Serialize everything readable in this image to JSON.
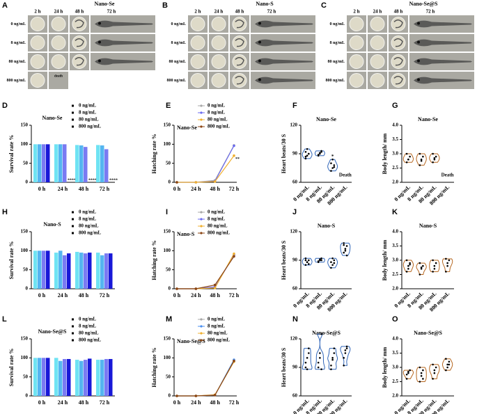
{
  "image_panels": [
    {
      "panel": "A",
      "title": "Nano-Se",
      "columns": [
        "2 h",
        "24 h",
        "48 h",
        "72 h"
      ],
      "rows": [
        "0 ng/mL",
        "8 ng/mL",
        "80 ng/mL",
        "800 ng/mL"
      ],
      "death_label": "death"
    },
    {
      "panel": "B",
      "title": "Nano-S",
      "columns": [
        "2 h",
        "24 h",
        "48 h",
        "72 h"
      ],
      "rows": [
        "0 ng/mL",
        "8 ng/mL",
        "80 ng/mL",
        "800 ng/mL"
      ]
    },
    {
      "panel": "C",
      "title": "Nano-Se@S",
      "columns": [
        "2 h",
        "24 h",
        "48 h",
        "72 h"
      ],
      "rows": [
        "0 ng/mL",
        "8 ng/mL",
        "80 ng/mL",
        "800 ng/mL"
      ]
    }
  ],
  "chart_data": [
    {
      "type": "bar",
      "panel": "D",
      "title": "Nano-Se",
      "ylabel": "Survival rate %",
      "categories": [
        "0 h",
        "24 h",
        "48 h",
        "72 h"
      ],
      "ylim": [
        0,
        150
      ],
      "yticks": [
        0,
        50,
        100,
        150
      ],
      "legend": "upper right",
      "series": [
        {
          "name": "0 ng/mL",
          "color": "#6fe3f3",
          "values": [
            100,
            100,
            98,
            98
          ]
        },
        {
          "name": "8 ng/mL",
          "color": "#55b5f0",
          "values": [
            100,
            100,
            97,
            97
          ]
        },
        {
          "name": "80 ng/mL",
          "color": "#7a7af2",
          "values": [
            100,
            100,
            93,
            87
          ]
        },
        {
          "name": "800 ng/mL",
          "color": "#1818d8",
          "values": [
            100,
            0,
            0,
            0
          ],
          "significance": [
            null,
            "****",
            "****",
            "****"
          ]
        }
      ]
    },
    {
      "type": "line",
      "panel": "E",
      "title": "Nano-Se",
      "ylabel": "Hatching rate %",
      "categories": [
        "0 h",
        "24 h",
        "48 h",
        "72 h"
      ],
      "ylim": [
        0,
        150
      ],
      "yticks": [
        0,
        50,
        100,
        150
      ],
      "legend": "upper right",
      "series": [
        {
          "name": "0 ng/mL",
          "color": "#a8a8a8",
          "values": [
            0,
            0,
            5,
            97
          ]
        },
        {
          "name": "8 ng/mL",
          "color": "#6b6bf0",
          "values": [
            0,
            0,
            3,
            96
          ]
        },
        {
          "name": "80 ng/mL",
          "color": "#f0b030",
          "values": [
            0,
            0,
            2,
            70
          ],
          "significance": [
            null,
            null,
            null,
            "**"
          ]
        },
        {
          "name": "800 ng/mL",
          "color": "#8b4513",
          "values": [
            0,
            null,
            null,
            null
          ]
        }
      ]
    },
    {
      "type": "violin",
      "panel": "F",
      "title": "Nano-Se",
      "ylabel": "Heart beats/30 S",
      "color": "#2e64b8",
      "categories": [
        "0 ng/mL",
        "8 ng/mL",
        "80 ng/mL",
        "800 ng/mL"
      ],
      "ylim": [
        60,
        120
      ],
      "yticks": [
        60,
        90,
        120
      ],
      "values": [
        [
          85,
          88,
          90,
          92,
          95,
          90,
          87
        ],
        [
          88,
          90,
          92,
          89,
          91,
          93
        ],
        [
          72,
          75,
          78,
          80,
          84,
          76
        ],
        null
      ],
      "annotations": [
        null,
        null,
        "*",
        "Death"
      ]
    },
    {
      "type": "violin",
      "panel": "G",
      "title": "Nano-Se",
      "ylabel": "Body length/ mm",
      "color": "#b5651d",
      "categories": [
        "0 ng/mL",
        "8 ng/mL",
        "80 ng/mL",
        "800 ng/mL"
      ],
      "ylim": [
        2,
        4
      ],
      "yticks": [
        {
          "value": 2,
          "label": "2.0"
        },
        {
          "value": 2.5,
          "label": "2.5"
        },
        {
          "value": 3,
          "label": "3.0"
        },
        {
          "value": 3.5,
          "label": "3.5"
        },
        {
          "value": 4,
          "label": "4.0"
        }
      ],
      "values": [
        [
          2.7,
          2.8,
          2.9,
          3.0,
          2.8
        ],
        [
          2.6,
          2.8,
          2.9,
          3.0,
          2.75
        ],
        [
          2.7,
          2.8,
          2.9,
          3.0,
          2.85
        ],
        null
      ],
      "annotations": [
        null,
        null,
        null,
        "Death"
      ]
    },
    {
      "type": "bar",
      "panel": "H",
      "title": "Nano-S",
      "ylabel": "Survival rate %",
      "categories": [
        "0 h",
        "24 h",
        "48 h",
        "72 h"
      ],
      "ylim": [
        0,
        150
      ],
      "yticks": [
        0,
        50,
        100,
        150
      ],
      "legend": "upper right",
      "series": [
        {
          "name": "0 ng/mL",
          "color": "#6fe3f3",
          "values": [
            100,
            95,
            97,
            95
          ]
        },
        {
          "name": "8 ng/mL",
          "color": "#55b5f0",
          "values": [
            100,
            100,
            95,
            88
          ]
        },
        {
          "name": "80 ng/mL",
          "color": "#7a7af2",
          "values": [
            100,
            88,
            93,
            93
          ]
        },
        {
          "name": "800 ng/mL",
          "color": "#1818d8",
          "values": [
            100,
            93,
            95,
            93
          ]
        }
      ]
    },
    {
      "type": "line",
      "panel": "I",
      "title": "Nano-S",
      "ylabel": "Hatching rate %",
      "categories": [
        "0 h",
        "24 h",
        "48 h",
        "72 h"
      ],
      "ylim": [
        0,
        150
      ],
      "yticks": [
        0,
        50,
        100,
        150
      ],
      "legend": "upper right",
      "series": [
        {
          "name": "0 ng/mL",
          "color": "#a8a8a8",
          "values": [
            0,
            0,
            3,
            90
          ]
        },
        {
          "name": "8 ng/mL",
          "color": "#6b6bf0",
          "values": [
            0,
            0,
            5,
            88
          ]
        },
        {
          "name": "80 ng/mL",
          "color": "#f0b030",
          "values": [
            0,
            0,
            2,
            92
          ]
        },
        {
          "name": "800 ng/mL",
          "color": "#8b4513",
          "values": [
            0,
            0,
            10,
            85
          ]
        }
      ]
    },
    {
      "type": "violin",
      "panel": "J",
      "title": "Nano-S",
      "ylabel": "Heart beats/30 S",
      "color": "#2e64b8",
      "categories": [
        "0 ng/mL",
        "8 ng/mL",
        "80 ng/mL",
        "800 ng/mL"
      ],
      "ylim": [
        60,
        120
      ],
      "yticks": [
        60,
        90,
        120
      ],
      "values": [
        [
          85,
          88,
          90,
          92,
          88,
          86,
          90
        ],
        [
          88,
          90,
          92,
          89,
          91,
          90
        ],
        [
          82,
          85,
          90,
          88,
          92,
          87
        ],
        [
          98,
          100,
          105,
          108,
          102,
          95,
          106
        ]
      ]
    },
    {
      "type": "violin",
      "panel": "K",
      "title": "Nano-S",
      "ylabel": "Body length/ mm",
      "color": "#b5651d",
      "categories": [
        "0 ng/mL",
        "8 ng/mL",
        "80 ng/mL",
        "800 ng/mL"
      ],
      "ylim": [
        2,
        4
      ],
      "yticks": [
        {
          "value": 2,
          "label": "2.0"
        },
        {
          "value": 2.5,
          "label": "2.5"
        },
        {
          "value": 3,
          "label": "3.0"
        },
        {
          "value": 3.5,
          "label": "3.5"
        },
        {
          "value": 4,
          "label": "4.0"
        }
      ],
      "values": [
        [
          2.6,
          2.8,
          2.9,
          3.0,
          2.7,
          2.85
        ],
        [
          2.5,
          2.7,
          2.8,
          2.9,
          2.75
        ],
        [
          2.6,
          2.8,
          2.9,
          3.0,
          2.7
        ],
        [
          2.6,
          2.8,
          3.0,
          3.05,
          2.9
        ]
      ]
    },
    {
      "type": "bar",
      "panel": "L",
      "title": "Nano-Se@S",
      "ylabel": "Survival rate %",
      "categories": [
        "0 h",
        "24 h",
        "48 h",
        "72 h"
      ],
      "ylim": [
        0,
        150
      ],
      "yticks": [
        0,
        50,
        100,
        150
      ],
      "legend": "upper right",
      "series": [
        {
          "name": "0 ng/mL",
          "color": "#6fe3f3",
          "values": [
            100,
            100,
            95,
            95
          ]
        },
        {
          "name": "8 ng/mL",
          "color": "#55b5f0",
          "values": [
            100,
            92,
            92,
            95
          ]
        },
        {
          "name": "80 ng/mL",
          "color": "#7a7af2",
          "values": [
            100,
            97,
            95,
            97
          ]
        },
        {
          "name": "800 ng/mL",
          "color": "#1818d8",
          "values": [
            100,
            97,
            98,
            97
          ]
        }
      ]
    },
    {
      "type": "line",
      "panel": "M",
      "title": "Nano-Se@S",
      "ylabel": "Hatching rate %",
      "categories": [
        "0 h",
        "24 h",
        "48 h",
        "72 h"
      ],
      "ylim": [
        0,
        150
      ],
      "yticks": [
        0,
        50,
        100,
        150
      ],
      "legend": "upper right",
      "series": [
        {
          "name": "0 ng/mL",
          "color": "#a8a8a8",
          "values": [
            0,
            0,
            2,
            92
          ]
        },
        {
          "name": "8 ng/mL",
          "color": "#4a8ff0",
          "values": [
            0,
            0,
            2,
            95
          ]
        },
        {
          "name": "80 ng/mL",
          "color": "#f0b030",
          "values": [
            0,
            0,
            3,
            90
          ]
        },
        {
          "name": "800 ng/mL",
          "color": "#8b4513",
          "values": [
            0,
            0,
            2,
            92
          ]
        }
      ]
    },
    {
      "type": "violin",
      "panel": "N",
      "title": "Nano-Se@S",
      "ylabel": "Heart beats/30 S",
      "color": "#2e64b8",
      "categories": [
        "0 ng/mL",
        "8 ng/mL",
        "80 ng/mL",
        "800 ng/mL"
      ],
      "ylim": [
        60,
        120
      ],
      "yticks": [
        60,
        90,
        120
      ],
      "values": [
        [
          90,
          100,
          110,
          95,
          88,
          105
        ],
        [
          90,
          100,
          125,
          95,
          105,
          88
        ],
        [
          88,
          98,
          110,
          92,
          100,
          105
        ],
        [
          92,
          105,
          112,
          100,
          108,
          110
        ]
      ]
    },
    {
      "type": "violin",
      "panel": "O",
      "title": "Nano-Se@S",
      "ylabel": "Body length/ mm",
      "color": "#b5651d",
      "categories": [
        "0 ng/mL",
        "8 ng/mL",
        "80 ng/mL",
        "800 ng/mL"
      ],
      "ylim": [
        2,
        4
      ],
      "yticks": [
        {
          "value": 2,
          "label": "2.0"
        },
        {
          "value": 2.5,
          "label": "2.5"
        },
        {
          "value": 3,
          "label": "3.0"
        },
        {
          "value": 3.5,
          "label": "3.5"
        },
        {
          "value": 4,
          "label": "4.0"
        }
      ],
      "values": [
        [
          2.6,
          2.8,
          2.9,
          2.75,
          2.85
        ],
        [
          2.5,
          2.7,
          2.9,
          3.0,
          2.8,
          2.6
        ],
        [
          2.6,
          2.8,
          3.0,
          3.1,
          2.9
        ],
        [
          2.9,
          3.1,
          3.2,
          3.3,
          3.0,
          3.1
        ]
      ]
    }
  ]
}
